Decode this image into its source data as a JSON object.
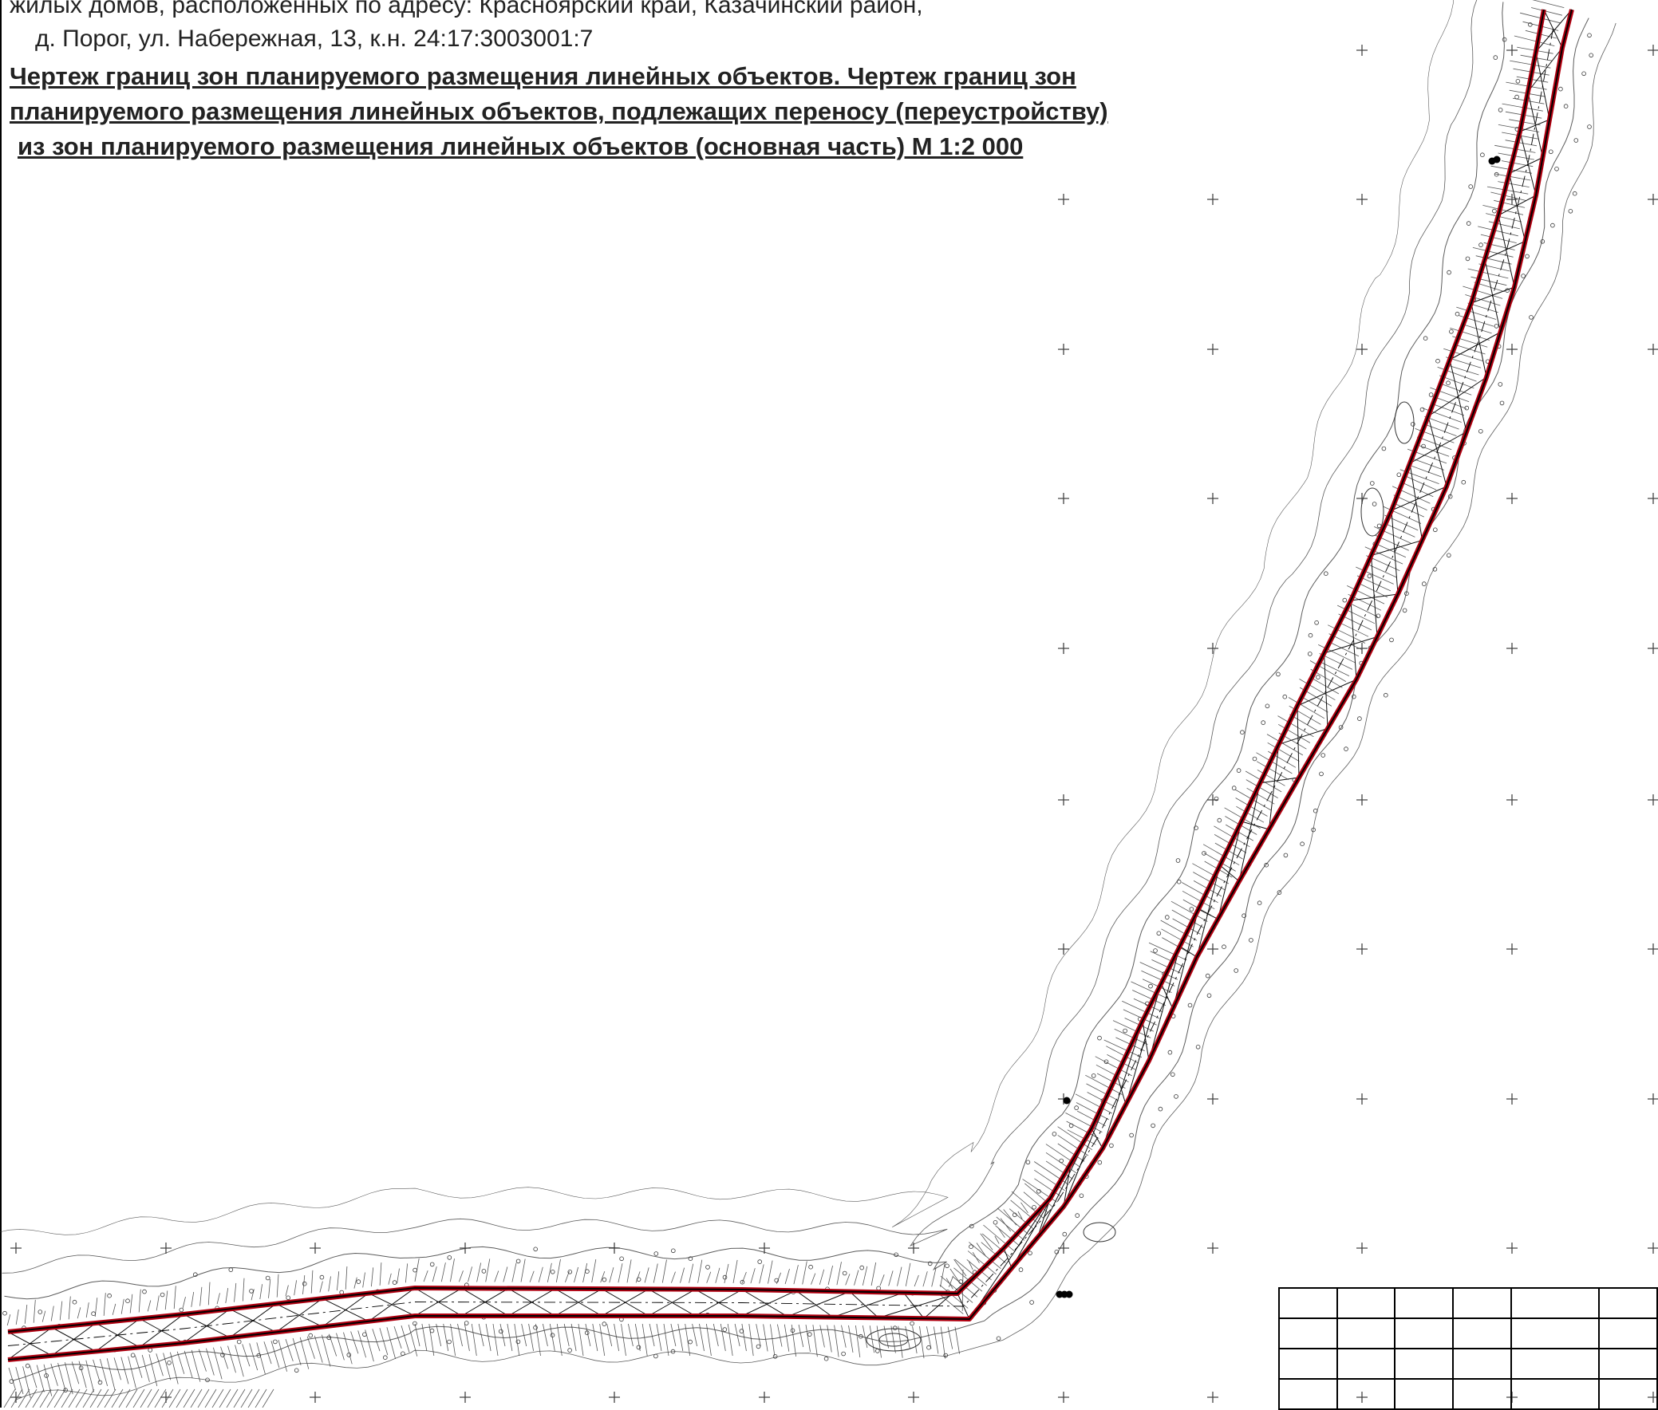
{
  "title": {
    "address_line1": "жилых домов, расположенных по адресу: Красноярский край, Казачинский район,",
    "address_line2": "д. Порог, ул. Набережная, 13, к.н. 24:17:3003001:7",
    "heading_line1": "Чертеж границ зон планируемого размещения линейных объектов.  Чертеж границ зон",
    "heading_line2": "планируемого размещения линейных объектов, подлежащих переносу (переустройству)",
    "heading_line3": "из зон планируемого размещения линейных объектов (основная часть) М 1:2 000"
  },
  "colors": {
    "boundary": "#b00010",
    "centerline": "#000000",
    "contour": "#333333",
    "background": "#ffffff"
  },
  "icons": {
    "grid_marks": "plus-sign",
    "survey_points": "small-circle",
    "utility_pole": "filled-dot"
  }
}
